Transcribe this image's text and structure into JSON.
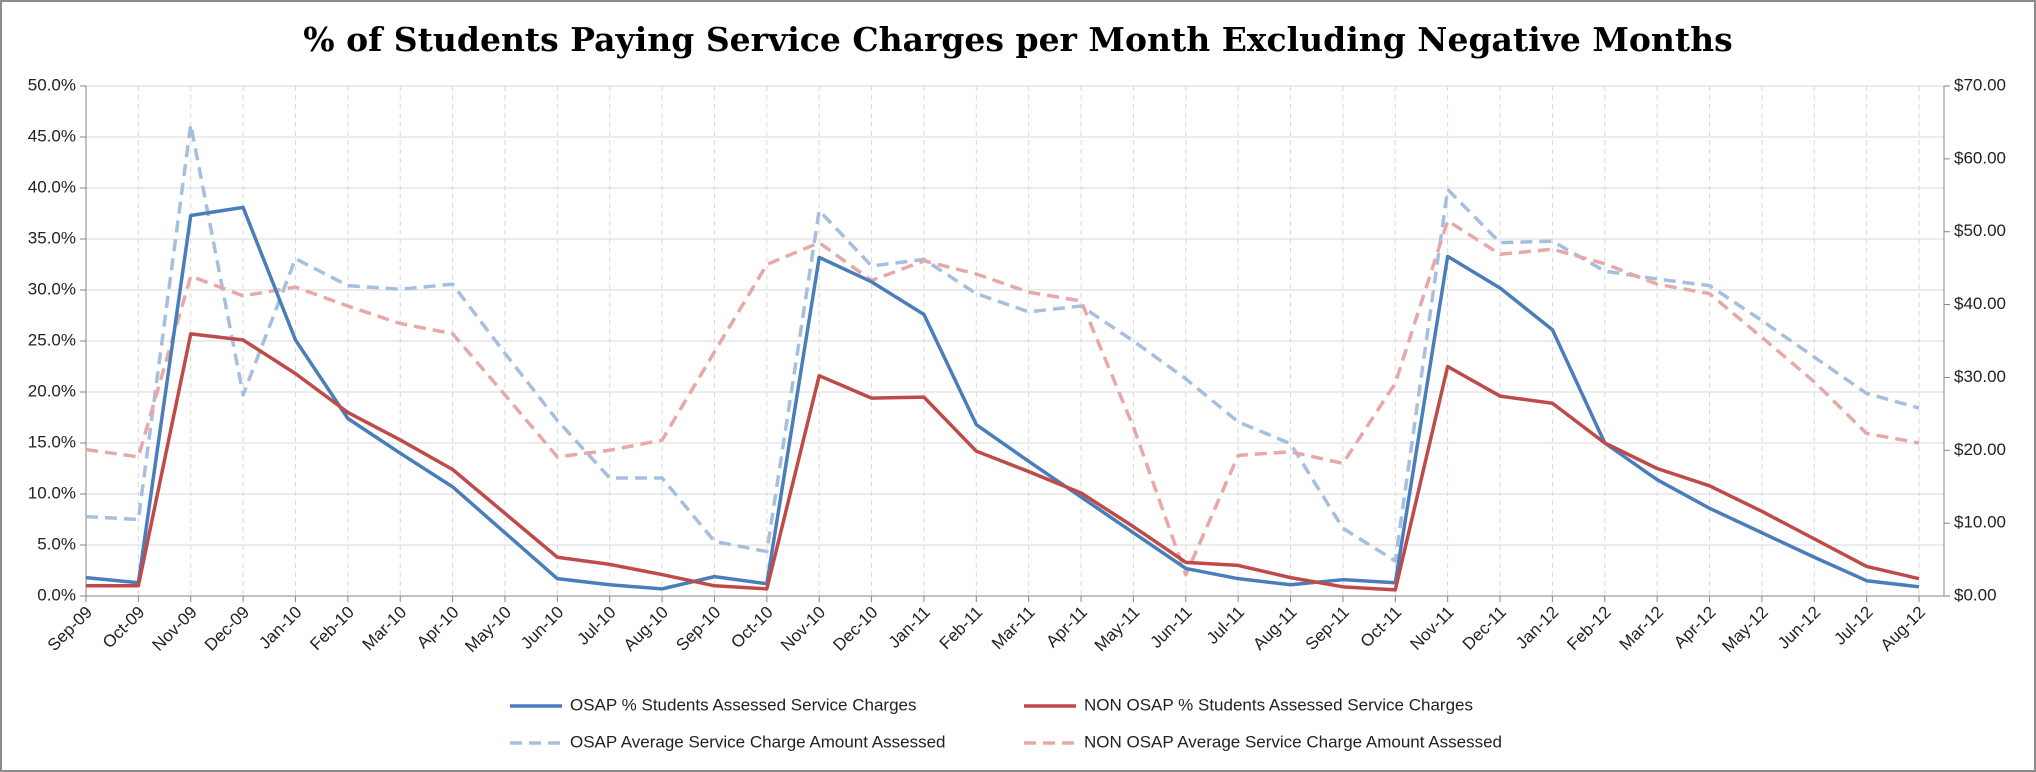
{
  "chart_data": {
    "type": "line",
    "title": "% of Students Paying Service Charges per Month Excluding Negative Months",
    "categories": [
      "Sep-09",
      "Oct-09",
      "Nov-09",
      "Dec-09",
      "Jan-10",
      "Feb-10",
      "Mar-10",
      "Apr-10",
      "May-10",
      "Jun-10",
      "Jul-10",
      "Aug-10",
      "Sep-10",
      "Oct-10",
      "Nov-10",
      "Dec-10",
      "Jan-11",
      "Feb-11",
      "Mar-11",
      "Apr-11",
      "May-11",
      "Jun-11",
      "Jul-11",
      "Aug-11",
      "Sep-11",
      "Oct-11",
      "Nov-11",
      "Dec-11",
      "Jan-12",
      "Feb-12",
      "Mar-12",
      "Apr-12",
      "May-12",
      "Jun-12",
      "Jul-12",
      "Aug-12"
    ],
    "series": [
      {
        "name": "OSAP % Students Assessed Service Charges",
        "color": "#4a7ebb",
        "dashed": false,
        "values": [
          1.8,
          1.3,
          37.3,
          38.1,
          25.1,
          17.4,
          14.0,
          10.7,
          6.2,
          1.7,
          1.1,
          0.7,
          1.9,
          1.2,
          33.2,
          30.8,
          27.6,
          16.8,
          13.2,
          9.7,
          6.2,
          2.7,
          1.7,
          1.1,
          1.6,
          1.3,
          33.3,
          30.2,
          26.1,
          15.0,
          11.4,
          8.6,
          6.2,
          3.8,
          1.5,
          0.9
        ]
      },
      {
        "name": "NON OSAP % Students Assessed Service Charges",
        "color": "#be4b48",
        "dashed": false,
        "values": [
          1.0,
          1.0,
          25.7,
          25.1,
          21.8,
          18.0,
          15.3,
          12.4,
          8.1,
          3.8,
          3.1,
          2.1,
          1.0,
          0.7,
          21.6,
          19.4,
          19.5,
          14.2,
          12.2,
          10.1,
          6.8,
          3.3,
          3.0,
          1.8,
          0.9,
          0.6,
          22.5,
          19.6,
          18.9,
          15.0,
          12.5,
          10.8,
          8.3,
          5.6,
          2.9,
          1.7
        ]
      },
      {
        "name": "OSAP Average Service Charge Amount Assessed",
        "color": "#a7bfde",
        "dashed": true,
        "axis": "y2",
        "values": [
          10.9,
          10.5,
          64.7,
          27.6,
          46.3,
          42.6,
          42.1,
          42.8,
          33.3,
          24.1,
          16.2,
          16.2,
          7.5,
          6.1,
          52.9,
          45.3,
          46.2,
          41.5,
          39.0,
          39.8,
          35.0,
          29.8,
          23.9,
          20.9,
          9.3,
          4.8,
          55.8,
          48.5,
          48.7,
          44.6,
          43.5,
          42.6,
          37.8,
          32.8,
          27.8,
          25.8
        ]
      },
      {
        "name": "NON OSAP Average Service Charge Amount Assessed",
        "color": "#e6a9a8",
        "dashed": true,
        "axis": "y2",
        "values": [
          20.1,
          19.1,
          43.9,
          41.2,
          42.4,
          39.8,
          37.4,
          36.0,
          27.6,
          19.1,
          20.0,
          21.4,
          33.5,
          45.5,
          48.5,
          43.3,
          46.0,
          44.2,
          41.7,
          40.5,
          23.2,
          2.9,
          19.3,
          19.8,
          18.2,
          29.2,
          51.5,
          46.9,
          47.6,
          45.6,
          42.8,
          41.5,
          35.5,
          29.4,
          22.3,
          21.0
        ]
      }
    ],
    "ylim": [
      0,
      50
    ],
    "yticks": [
      {
        "value": 0,
        "label": "0.0%"
      },
      {
        "value": 5,
        "label": "5.0%"
      },
      {
        "value": 10,
        "label": "10.0%"
      },
      {
        "value": 15,
        "label": "15.0%"
      },
      {
        "value": 20,
        "label": "20.0%"
      },
      {
        "value": 25,
        "label": "25.0%"
      },
      {
        "value": 30,
        "label": "30.0%"
      },
      {
        "value": 35,
        "label": "35.0%"
      },
      {
        "value": 40,
        "label": "40.0%"
      },
      {
        "value": 45,
        "label": "45.0%"
      },
      {
        "value": 50,
        "label": "50.0%"
      }
    ],
    "y2lim": [
      0,
      70
    ],
    "y2ticks": [
      {
        "value": 0,
        "label": "$0.00"
      },
      {
        "value": 10,
        "label": "$10.00"
      },
      {
        "value": 20,
        "label": "$20.00"
      },
      {
        "value": 30,
        "label": "$30.00"
      },
      {
        "value": 40,
        "label": "$40.00"
      },
      {
        "value": 50,
        "label": "$50.00"
      },
      {
        "value": 60,
        "label": "$60.00"
      },
      {
        "value": 70,
        "label": "$70.00"
      }
    ],
    "grid": true,
    "legend": "bottom"
  }
}
